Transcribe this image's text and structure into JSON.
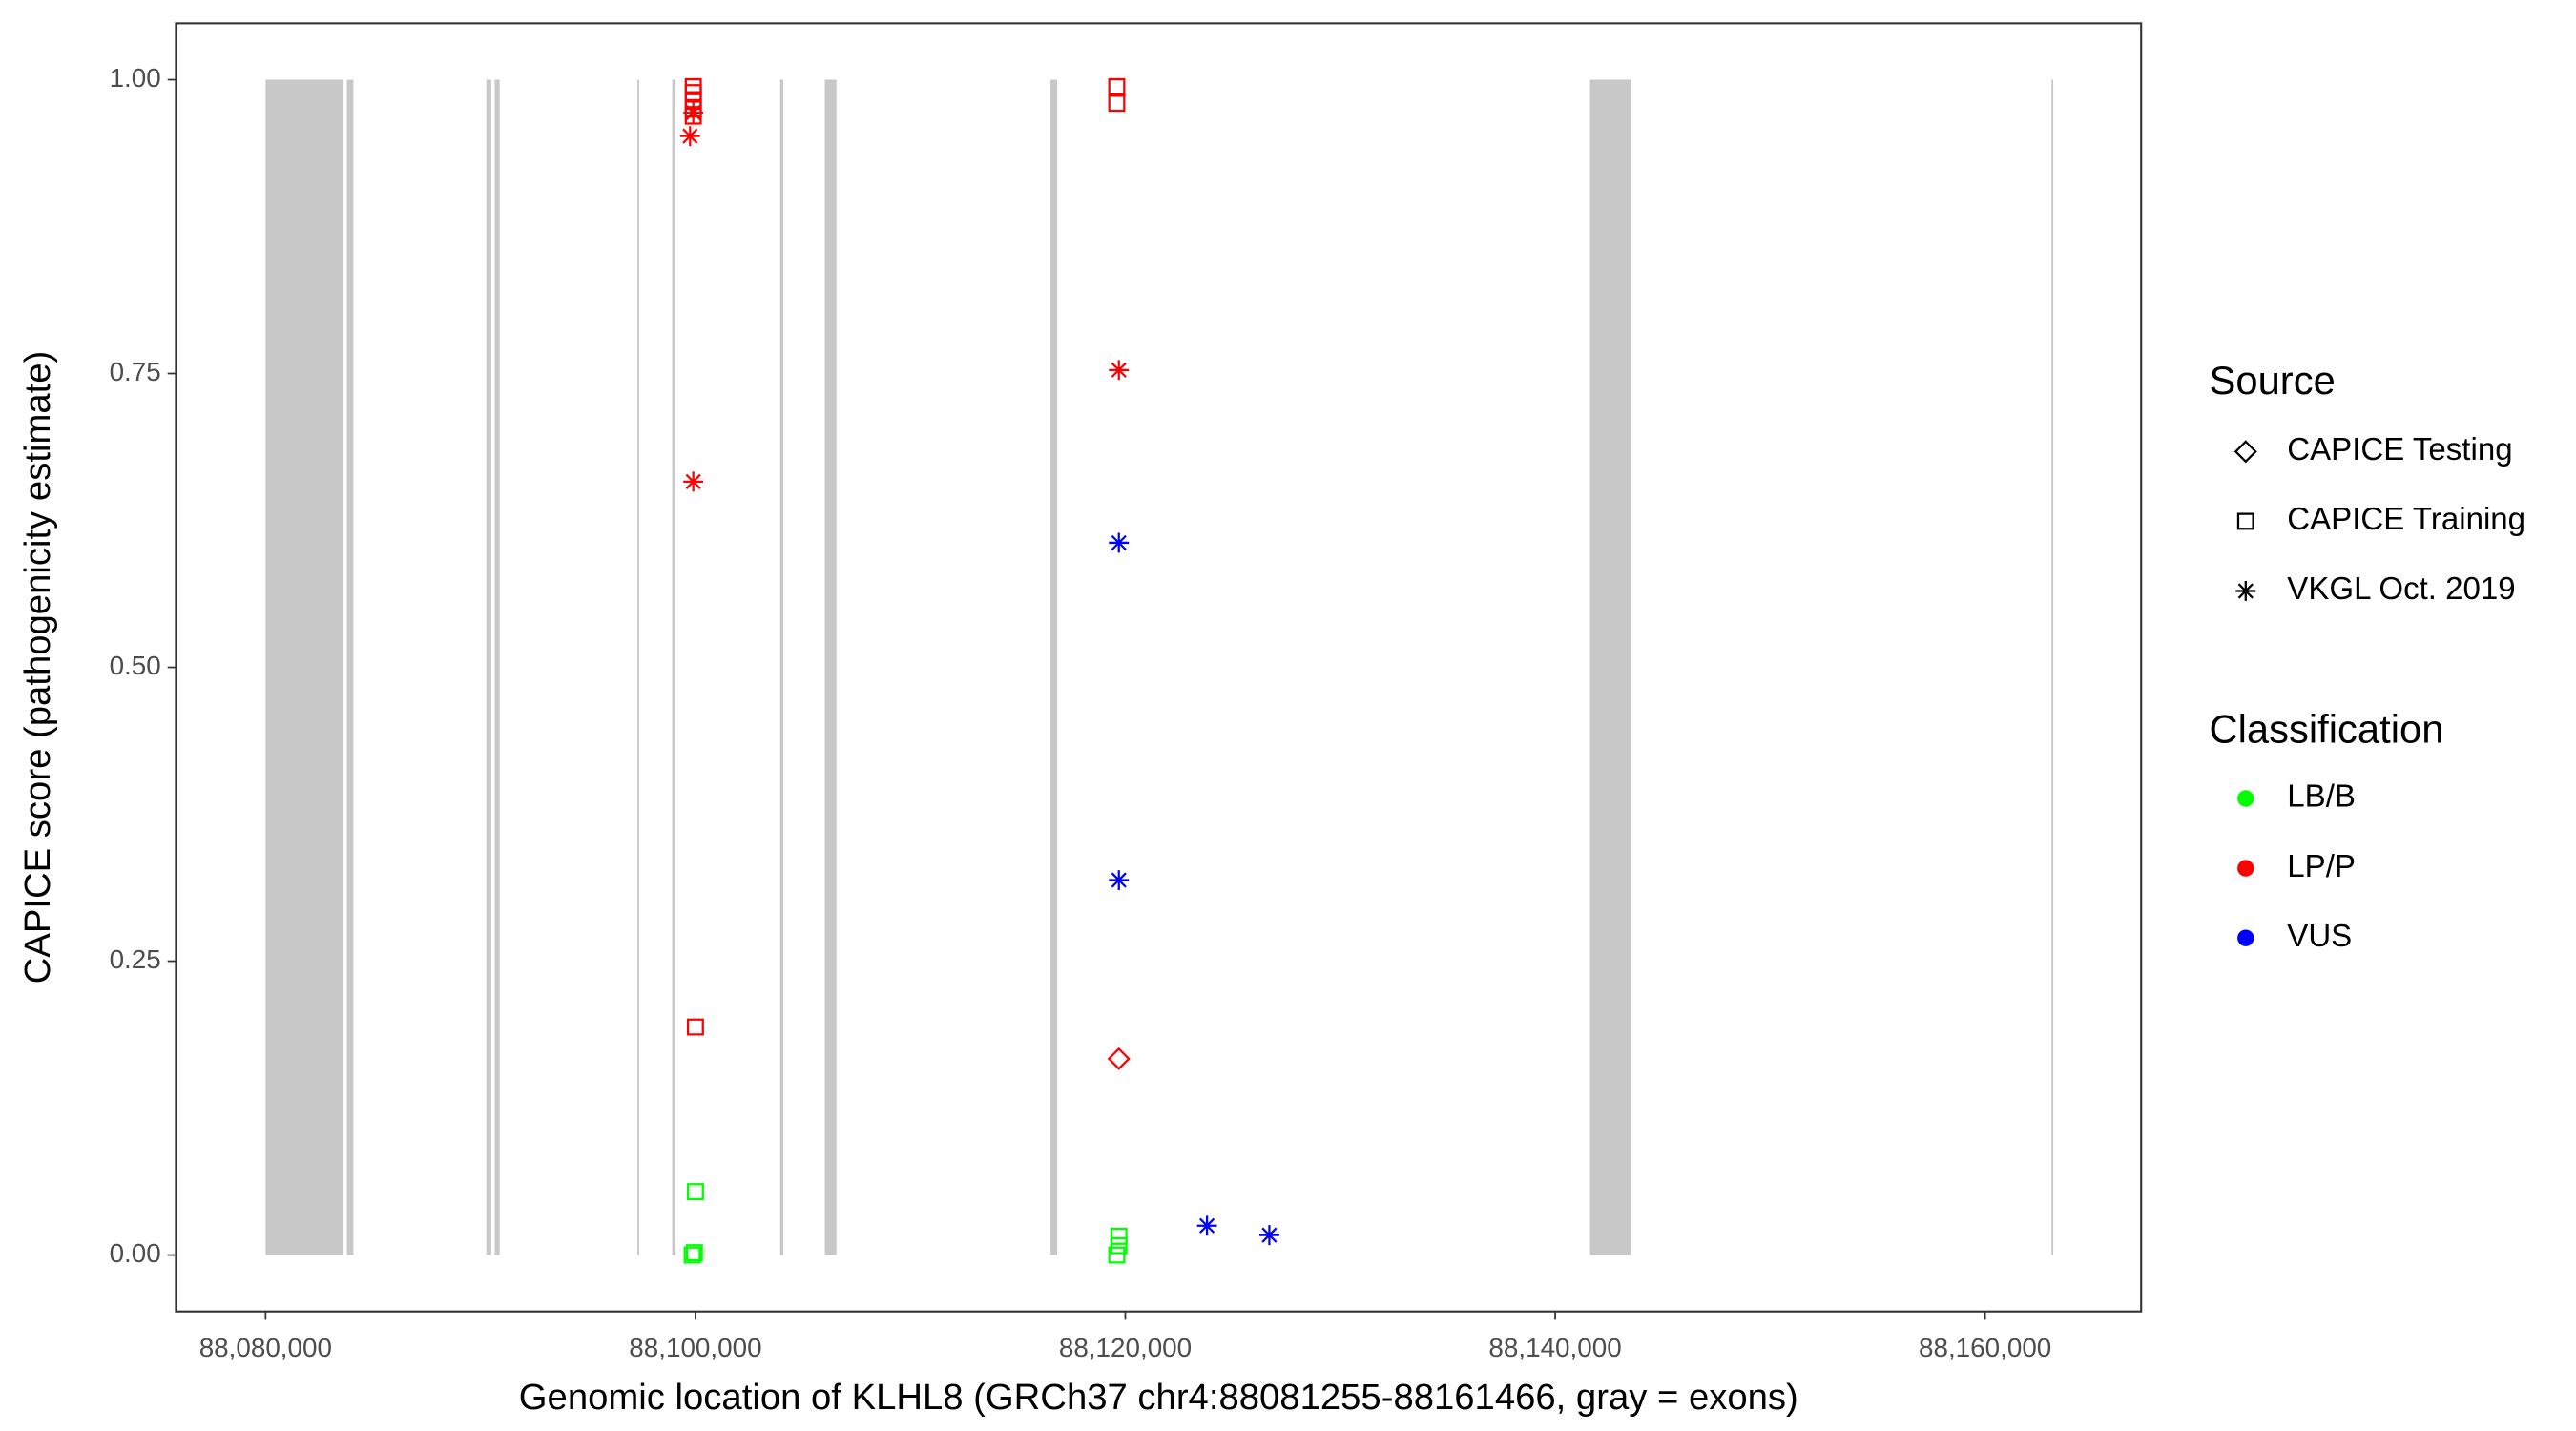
{
  "chart_data": {
    "type": "scatter",
    "x_label": "Genomic location of KLHL8 (GRCh37 chr4:88081255-88161466, gray = exons)",
    "y_label": "CAPICE score (pathogenicity estimate)",
    "xlim": [
      88075830,
      88167260
    ],
    "ylim": [
      -0.048,
      1.048
    ],
    "xticks": [
      {
        "value": 88080000,
        "label": "88,080,000"
      },
      {
        "value": 88100000,
        "label": "88,100,000"
      },
      {
        "value": 88120000,
        "label": "88,120,000"
      },
      {
        "value": 88140000,
        "label": "88,140,000"
      },
      {
        "value": 88160000,
        "label": "88,160,000"
      }
    ],
    "yticks": [
      {
        "value": 0,
        "label": "0.00"
      },
      {
        "value": 0.25,
        "label": "0.25"
      },
      {
        "value": 0.5,
        "label": "0.50"
      },
      {
        "value": 0.75,
        "label": "0.75"
      },
      {
        "value": 1,
        "label": "1.00"
      }
    ],
    "exon_color": "#c8c8c8",
    "exons": [
      [
        88080000,
        88083630
      ],
      [
        88083780,
        88084090
      ],
      [
        88090270,
        88090500
      ],
      [
        88090660,
        88090890
      ],
      [
        88097300,
        88097380
      ],
      [
        88098920,
        88099070
      ],
      [
        88103940,
        88104090
      ],
      [
        88106020,
        88106560
      ],
      [
        88116520,
        88116830
      ],
      [
        88141620,
        88143550
      ],
      [
        88163090,
        88163170
      ]
    ],
    "legend_source": {
      "title": "Source",
      "items": [
        {
          "name": "CAPICE Testing",
          "shape": "diamond"
        },
        {
          "name": "CAPICE Training",
          "shape": "square"
        },
        {
          "name": "VKGL Oct. 2019",
          "shape": "star"
        }
      ]
    },
    "legend_classification": {
      "title": "Classification",
      "items": [
        {
          "name": "LB/B",
          "color": "#00ff00"
        },
        {
          "name": "LP/P",
          "color": "#ff0000"
        },
        {
          "name": "VUS",
          "color": "#0000ff"
        }
      ]
    },
    "series": [
      {
        "source": "CAPICE Training",
        "classification": "LP/P",
        "x": [
          88099900,
          88099900,
          88099900,
          88099900,
          88099900,
          88100000,
          88119600,
          88119600
        ],
        "y": [
          0.994,
          0.989,
          0.983,
          0.975,
          0.969,
          0.194,
          0.994,
          0.98
        ]
      },
      {
        "source": "VKGL Oct. 2019",
        "classification": "LP/P",
        "x": [
          88099750,
          88099900,
          88099900,
          88119700
        ],
        "y": [
          0.952,
          0.972,
          0.658,
          0.753
        ]
      },
      {
        "source": "CAPICE Testing",
        "classification": "LP/P",
        "x": [
          88119700
        ],
        "y": [
          0.167
        ]
      },
      {
        "source": "CAPICE Training",
        "classification": "LB/B",
        "x": [
          88100000,
          88099850,
          88099950,
          88119700,
          88119700,
          88119600
        ],
        "y": [
          0.054,
          0.0,
          0.002,
          0.016,
          0.008,
          0.0
        ]
      },
      {
        "source": "VKGL Oct. 2019",
        "classification": "VUS",
        "x": [
          88119700,
          88119700,
          88123800,
          88126700
        ],
        "y": [
          0.606,
          0.319,
          0.025,
          0.017
        ]
      }
    ]
  }
}
